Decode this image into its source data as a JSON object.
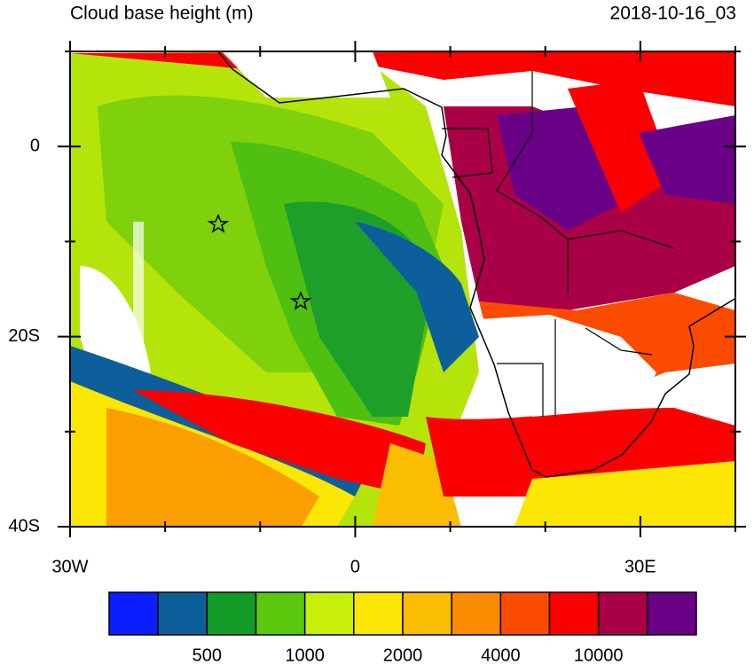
{
  "map": {
    "title": "Cloud base height (m)",
    "timestamp": "2018-10-16_03",
    "xlim": [
      -30,
      40
    ],
    "ylim": [
      -40,
      10
    ],
    "lon_ticks": [
      {
        "value": -30,
        "label": "30W"
      },
      {
        "value": 0,
        "label": "0"
      },
      {
        "value": 30,
        "label": "30E"
      }
    ],
    "lon_minor_ticks": [
      -20,
      -10,
      10,
      20,
      40
    ],
    "lat_ticks": [
      {
        "value": 0,
        "label": "0"
      },
      {
        "value": -20,
        "label": "20S"
      },
      {
        "value": -40,
        "label": "40S"
      }
    ],
    "lat_minor_ticks": [
      10,
      -10,
      -30
    ],
    "colorbar": {
      "colors": [
        "#0a1eff",
        "#0d5f9c",
        "#129c27",
        "#5ac80c",
        "#c7ef0a",
        "#fbe604",
        "#fbbd02",
        "#fb8c00",
        "#fb4b00",
        "#fb0000",
        "#aa0047",
        "#6a0086"
      ],
      "levels": [
        null,
        500,
        null,
        1000,
        null,
        2000,
        null,
        4000,
        null,
        10000,
        null
      ]
    }
  }
}
